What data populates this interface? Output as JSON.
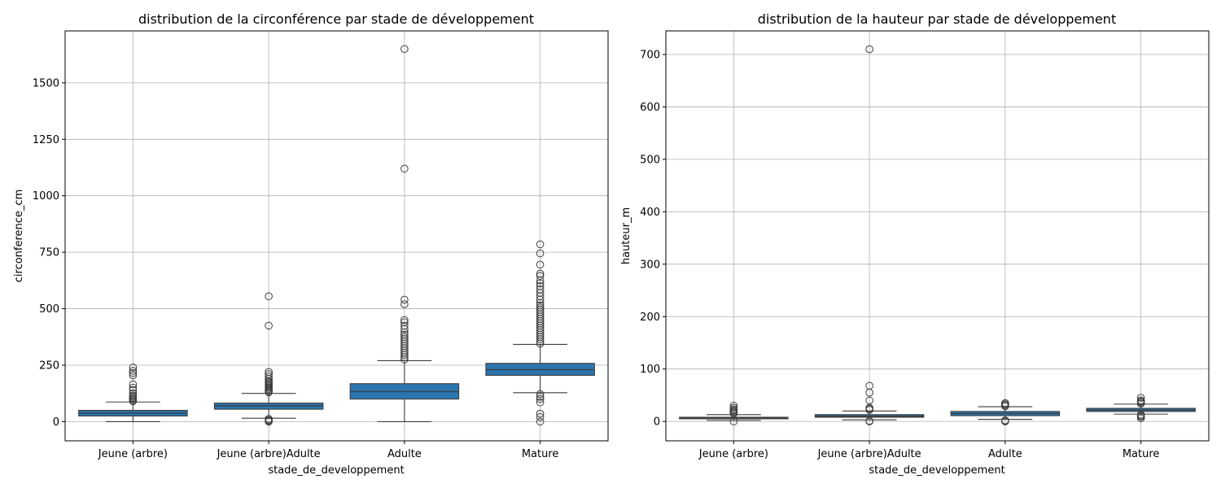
{
  "chart_data": [
    {
      "type": "box",
      "title": "distribution de la circonférence par stade de développement",
      "xlabel": "stade_de_developpement",
      "ylabel": "circonference_cm",
      "categories": [
        "Jeune (arbre)",
        "Jeune (arbre)Adulte",
        "Adulte",
        "Mature"
      ],
      "ylim": [
        -85,
        1730
      ],
      "yticks": [
        0,
        250,
        500,
        750,
        1000,
        1250,
        1500
      ],
      "grid": true,
      "box_color": "#2a75b0",
      "boxes": [
        {
          "category": "Jeune (arbre)",
          "whisker_low": 0,
          "q1": 25,
          "median": 38,
          "q3": 50,
          "whisker_high": 87,
          "outliers": [
            90,
            95,
            100,
            105,
            110,
            115,
            125,
            140,
            150,
            165,
            205,
            215,
            225,
            240
          ]
        },
        {
          "category": "Jeune (arbre)Adulte",
          "whisker_low": 15,
          "q1": 55,
          "median": 70,
          "q3": 82,
          "whisker_high": 125,
          "outliers": [
            0,
            3,
            7,
            12,
            130,
            135,
            140,
            145,
            150,
            155,
            160,
            165,
            170,
            175,
            180,
            190,
            200,
            210,
            220,
            425,
            555
          ]
        },
        {
          "category": "Adulte",
          "whisker_low": 0,
          "q1": 100,
          "median": 133,
          "q3": 168,
          "whisker_high": 270,
          "outliers": [
            275,
            285,
            295,
            305,
            315,
            325,
            335,
            345,
            355,
            365,
            375,
            385,
            395,
            410,
            425,
            440,
            450,
            520,
            540,
            1120,
            1650
          ]
        },
        {
          "category": "Mature",
          "whisker_low": 128,
          "q1": 205,
          "median": 230,
          "q3": 258,
          "whisker_high": 342,
          "outliers": [
            0,
            20,
            35,
            85,
            100,
            110,
            122,
            345,
            355,
            365,
            375,
            385,
            395,
            405,
            415,
            425,
            435,
            445,
            455,
            465,
            475,
            485,
            495,
            505,
            515,
            525,
            540,
            555,
            570,
            585,
            600,
            612,
            625,
            645,
            655,
            695,
            745,
            785
          ]
        }
      ]
    },
    {
      "type": "box",
      "title": "distribution de la hauteur par stade de développement",
      "xlabel": "stade_de_developpement",
      "ylabel": "hauteur_m",
      "categories": [
        "Jeune (arbre)",
        "Jeune (arbre)Adulte",
        "Adulte",
        "Mature"
      ],
      "ylim": [
        -37,
        745
      ],
      "yticks": [
        0,
        100,
        200,
        300,
        400,
        500,
        600,
        700
      ],
      "grid": true,
      "box_color": "#2a75b0",
      "boxes": [
        {
          "category": "Jeune (arbre)",
          "whisker_low": 2,
          "q1": 5,
          "median": 7,
          "q3": 8,
          "whisker_high": 13,
          "outliers": [
            0,
            15,
            17,
            19,
            21,
            23,
            26,
            30
          ]
        },
        {
          "category": "Jeune (arbre)Adulte",
          "whisker_low": 3,
          "q1": 8,
          "median": 10,
          "q3": 13,
          "whisker_high": 20,
          "outliers": [
            0,
            1,
            22,
            24,
            26,
            40,
            55,
            68,
            710
          ]
        },
        {
          "category": "Adulte",
          "whisker_low": 4,
          "q1": 11,
          "median": 15,
          "q3": 19,
          "whisker_high": 28,
          "outliers": [
            0,
            1,
            2,
            29,
            31,
            33,
            35
          ]
        },
        {
          "category": "Mature",
          "whisker_low": 14,
          "q1": 19,
          "median": 22,
          "q3": 25,
          "whisker_high": 33,
          "outliers": [
            6,
            9,
            11,
            13,
            34,
            36,
            38,
            40,
            45
          ]
        }
      ]
    }
  ]
}
